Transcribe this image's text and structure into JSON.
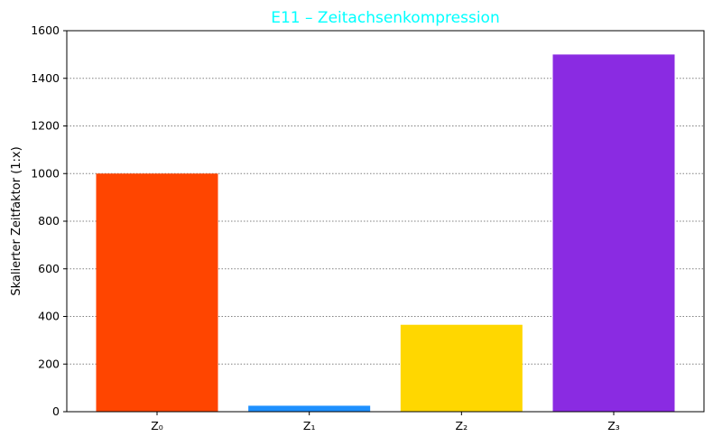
{
  "chart_data": {
    "type": "bar",
    "title": "E11 – Zeitachsenkompression",
    "title_color": "#00ffff",
    "xlabel": "",
    "ylabel": "Skalierter Zeitfaktor (1:x)",
    "categories": [
      "Z₀",
      "Z₁",
      "Z₂",
      "Z₃"
    ],
    "values": [
      1000,
      25,
      365,
      1500
    ],
    "colors": [
      "#ff4500",
      "#1e90ff",
      "#ffd700",
      "#8a2be2"
    ],
    "ylim": [
      0,
      1600
    ],
    "yticks": [
      0,
      200,
      400,
      600,
      800,
      1000,
      1200,
      1400,
      1600
    ],
    "grid": {
      "axis": "y",
      "style": "dotted",
      "color": "#808080"
    }
  }
}
